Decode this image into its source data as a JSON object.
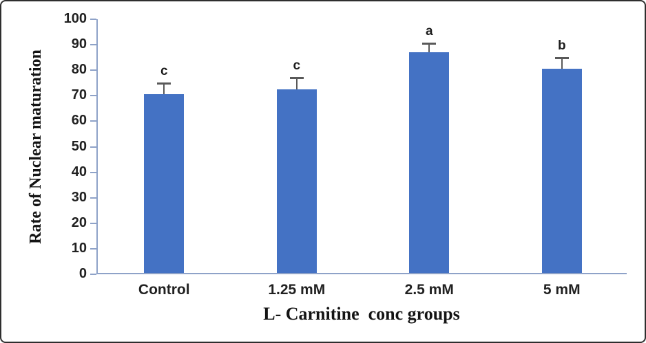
{
  "chart_data": {
    "type": "bar",
    "categories": [
      "Control",
      "1.25 mM",
      "2.5 mM",
      "5 mM"
    ],
    "values": [
      70,
      72,
      86.5,
      80
    ],
    "errors": [
      4.5,
      4.5,
      3.5,
      4.5
    ],
    "bar_labels": [
      "c",
      "c",
      "a",
      "b"
    ],
    "xlabel": "L- Carnitine  conc groups",
    "ylabel": "Rate of Nuclear maturation",
    "ylim": [
      0,
      100
    ],
    "ytick_step": 10,
    "ytick_labels": [
      "0",
      "10",
      "20",
      "30",
      "40",
      "50",
      "60",
      "70",
      "80",
      "90",
      "100"
    ],
    "grid": false,
    "legend": false,
    "colors": {
      "bar": "#4472C4",
      "axis": "#8EA2C8",
      "error_bar": "#595959",
      "text": "#212121",
      "figure_border": "#2E2E2E"
    }
  }
}
